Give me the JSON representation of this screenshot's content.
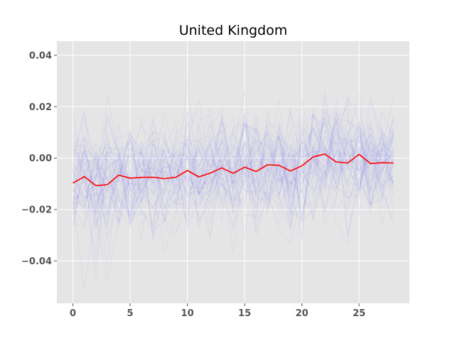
{
  "chart_data": {
    "type": "line",
    "title": "United Kingdom",
    "xlabel": "",
    "ylabel": "",
    "xlim": [
      -1.4,
      29.4
    ],
    "ylim": [
      -0.0565,
      0.0455
    ],
    "x_ticks": [
      0,
      5,
      10,
      15,
      20,
      25
    ],
    "x_tick_labels": [
      "0",
      "5",
      "10",
      "15",
      "20",
      "25"
    ],
    "y_ticks": [
      -0.04,
      -0.02,
      0.0,
      0.02,
      0.04
    ],
    "y_tick_labels": [
      "−0.04",
      "−0.02",
      "0.00",
      "0.02",
      "0.04"
    ],
    "grid": true,
    "legend": "none",
    "background": "#e5e5e5",
    "series": [
      {
        "role": "mean",
        "color": "#ff0000",
        "x": [
          0,
          1,
          2,
          3,
          4,
          5,
          6,
          7,
          8,
          9,
          10,
          11,
          12,
          13,
          14,
          15,
          16,
          17,
          18,
          19,
          20,
          21,
          22,
          23,
          24,
          25,
          26,
          27,
          28
        ],
        "values": [
          -0.0097,
          -0.0072,
          -0.0107,
          -0.0103,
          -0.0066,
          -0.0078,
          -0.0075,
          -0.0074,
          -0.008,
          -0.0074,
          -0.0048,
          -0.0073,
          -0.0058,
          -0.0038,
          -0.0059,
          -0.0035,
          -0.0052,
          -0.0026,
          -0.0028,
          -0.005,
          -0.003,
          0.0005,
          0.0016,
          -0.0015,
          -0.0019,
          0.0015,
          -0.0021,
          -0.0018,
          -0.0019
        ]
      },
      {
        "role": "samples",
        "color": "#0000ff",
        "opacity": 0.04,
        "count": 60,
        "spread": 0.011,
        "x": [
          0,
          1,
          2,
          3,
          4,
          5,
          6,
          7,
          8,
          9,
          10,
          11,
          12,
          13,
          14,
          15,
          16,
          17,
          18,
          19,
          20,
          21,
          22,
          23,
          24,
          25,
          26,
          27,
          28
        ]
      }
    ]
  }
}
